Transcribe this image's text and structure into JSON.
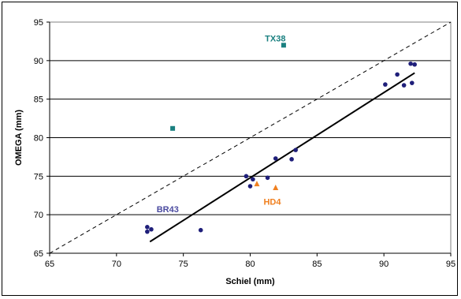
{
  "chart_data": {
    "type": "scatter",
    "xlabel": "Schiel (mm)",
    "ylabel": "OMEGA (mm)",
    "xlim": [
      65,
      95
    ],
    "ylim": [
      65,
      95
    ],
    "xticks": [
      "65",
      "70",
      "75",
      "80",
      "85",
      "90",
      "95"
    ],
    "yticks": [
      "65",
      "70",
      "75",
      "80",
      "85",
      "90",
      "95"
    ],
    "grid": "horizontal",
    "colors": {
      "circles": "#1f1f7a",
      "squares": "#1a8080",
      "triangles": "#f08020"
    },
    "series": [
      {
        "marker": "circle",
        "points": [
          [
            72.3,
            68.4
          ],
          [
            72.3,
            67.8
          ],
          [
            72.6,
            68.1
          ],
          [
            76.3,
            68.0
          ],
          [
            79.7,
            75.0
          ],
          [
            80.0,
            73.7
          ],
          [
            80.2,
            74.6
          ],
          [
            81.3,
            74.8
          ],
          [
            81.9,
            77.3
          ],
          [
            83.1,
            77.2
          ],
          [
            83.4,
            78.4
          ],
          [
            90.1,
            86.9
          ],
          [
            91.0,
            88.2
          ],
          [
            91.5,
            86.8
          ],
          [
            92.0,
            89.6
          ],
          [
            92.1,
            87.1
          ],
          [
            92.3,
            89.5
          ]
        ]
      },
      {
        "marker": "square",
        "points": [
          [
            74.2,
            81.2
          ],
          [
            82.5,
            92.0
          ]
        ]
      },
      {
        "marker": "triangle",
        "points": [
          [
            80.5,
            74.0
          ],
          [
            81.9,
            73.5
          ]
        ]
      }
    ],
    "lines": [
      {
        "style": "dashed",
        "x": [
          65,
          95
        ],
        "y": [
          65,
          95
        ]
      },
      {
        "style": "solid",
        "x": [
          72.5,
          92.3
        ],
        "y": [
          66.5,
          88.4
        ]
      }
    ],
    "annotations": [
      {
        "text": "TX38",
        "x": 81.1,
        "y": 92.5,
        "color": "#1a8080"
      },
      {
        "text": "BR43",
        "x": 73.0,
        "y": 70.3,
        "color": "#4b4ba0"
      },
      {
        "text": "HD4",
        "x": 81.0,
        "y": 71.3,
        "color": "#f08020"
      }
    ]
  }
}
